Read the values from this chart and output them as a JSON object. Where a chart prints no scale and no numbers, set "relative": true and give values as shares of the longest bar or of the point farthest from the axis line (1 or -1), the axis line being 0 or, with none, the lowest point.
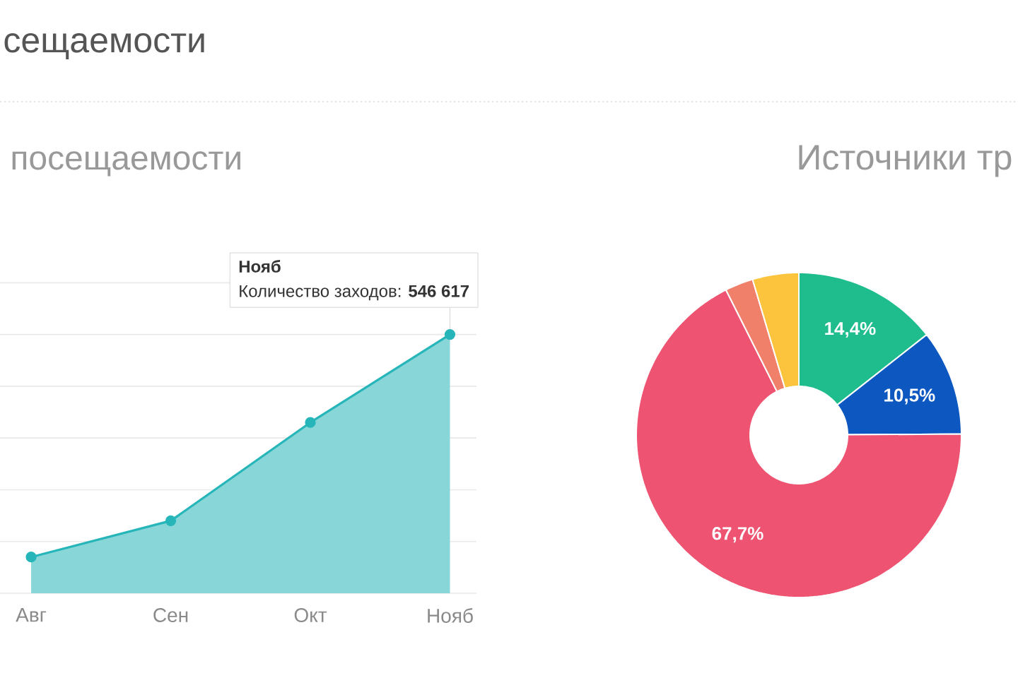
{
  "chart_data": [
    {
      "type": "area",
      "title": "сещаемости",
      "subtitle": "посещаемости",
      "categories": [
        "Авг",
        "Сен",
        "Окт",
        "Нояб"
      ],
      "values": [
        0.14,
        0.28,
        0.66,
        1
      ],
      "color": "#26b5b8",
      "relative": true,
      "grid": "y",
      "marker": "circle",
      "annotations": [
        "Нояб",
        {
          "text": "Количество заходов: **546 617**",
          "x": "Нояб",
          "y": 1
        }
      ]
    },
    {
      "type": "donut",
      "title": "Источники тр",
      "categories": [
        null,
        null,
        null,
        null,
        null
      ],
      "values": [
        14.4,
        10.5,
        67.7,
        2.8,
        4.6
      ],
      "colors": [
        "#1fbd8d",
        "#0c57c0",
        "#ee5471",
        "#f0806a",
        "#fbc43c"
      ],
      "value_labels": [
        "14,4%",
        "10,5%",
        "67,7%",
        null,
        null
      ]
    }
  ]
}
